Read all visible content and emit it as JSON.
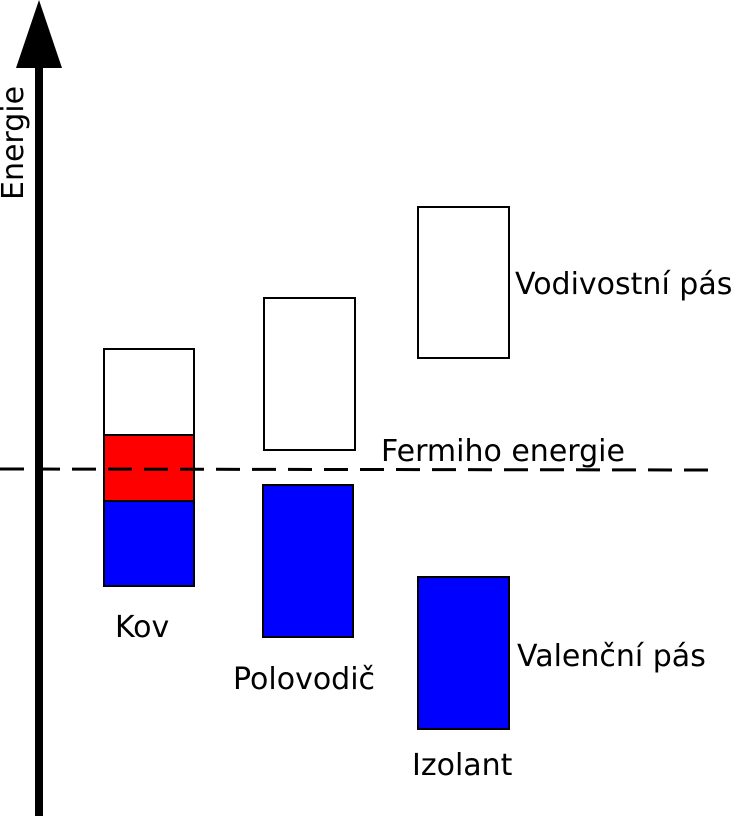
{
  "axis": {
    "label": "Energie"
  },
  "fermi": {
    "label": "Fermiho energie"
  },
  "materials": [
    {
      "label": "Kov"
    },
    {
      "label": "Polovodič"
    },
    {
      "label": "Izolant"
    }
  ],
  "bands": {
    "conduction_label": "Vodivostní pás",
    "valence_label": "Valenční pás"
  },
  "colors": {
    "filled_band": "#0000ff",
    "partial_band": "#ff0000",
    "empty_band": "#ffffff",
    "line": "#000000"
  }
}
